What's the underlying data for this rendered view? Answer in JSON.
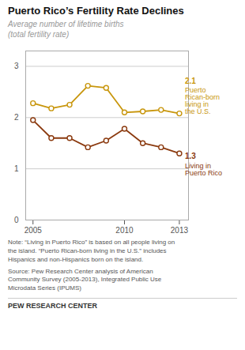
{
  "chart_data": {
    "type": "line",
    "title": "Puerto Rico’s Fertility Rate Declines",
    "subtitle": "Average number of lifetime births\n(total fertility rate)",
    "x": [
      2005,
      2006,
      2007,
      2008,
      2009,
      2010,
      2011,
      2012,
      2013
    ],
    "series": [
      {
        "name": "Puerto\nRican-born\nliving in\nthe U.S.",
        "color": "#C8960C",
        "values": [
          2.28,
          2.18,
          2.25,
          2.62,
          2.58,
          2.1,
          2.12,
          2.15,
          2.08
        ],
        "end_label": "2.1"
      },
      {
        "name": "Living in\nPuerto Rico",
        "color": "#8B3A0F",
        "values": [
          1.95,
          1.6,
          1.6,
          1.42,
          1.55,
          1.78,
          1.5,
          1.42,
          1.3
        ],
        "end_label": "1.3"
      }
    ],
    "xlim": [
      2004.6,
      2013.5
    ],
    "xticks": [
      2005,
      2010,
      2013
    ],
    "ylim": [
      0,
      3.3
    ],
    "yticks": [
      0,
      1,
      2,
      3
    ],
    "grid": true,
    "marker": "circle",
    "note": "Note: “Living in Puerto Rico” is based on all people living on\nthe island. “Puerto Rican-born living in the U.S.” includes\nHispanics and non-Hispanics born on the island.",
    "source": "Source: Pew Research Center analysis of American\nCommunity Survey (2005-2013), Integrated Public Use\nMicrodata Series (IPUMS)",
    "footer": "PEW RESEARCH CENTER"
  }
}
